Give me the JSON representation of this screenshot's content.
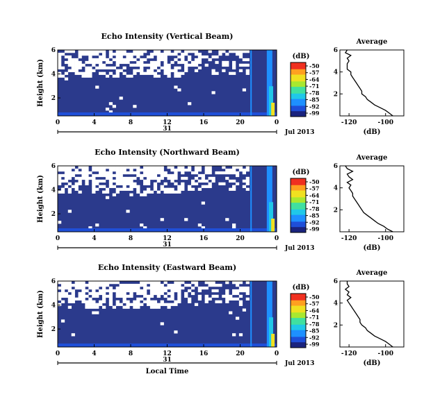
{
  "chart_data": [
    {
      "type": "heatmap",
      "title": "Echo Intensity (Vertical Beam)",
      "ylabel": "Height (km)",
      "xlabel": "",
      "x_ticks": [
        "0",
        "4",
        "8",
        "12",
        "16",
        "20",
        "0"
      ],
      "y_ticks": [
        "6",
        "4",
        "2"
      ],
      "xlim": [
        0,
        24
      ],
      "ylim": [
        0.5,
        6
      ],
      "date_label": "31",
      "month_label": "Jul 2013",
      "colorbar": {
        "label": "(dB)",
        "ticks": [
          "-50",
          "-57",
          "-64",
          "-71",
          "-78",
          "-85",
          "-92",
          "-99"
        ],
        "range": [
          -99,
          -50
        ]
      },
      "profile": {
        "title": "Average",
        "xlabel": "(dB)",
        "x_ticks": [
          "-120",
          "-100"
        ],
        "y_ticks": [
          "6",
          "4",
          "2"
        ],
        "xlim": [
          -125,
          -90
        ],
        "ylim": [
          0,
          6
        ],
        "heights": [
          0,
          0.25,
          0.5,
          0.75,
          1,
          1.25,
          1.5,
          1.75,
          2,
          2.25,
          2.5,
          2.75,
          3,
          3.25,
          3.5,
          3.75,
          4,
          4.25,
          4.5,
          4.75,
          5,
          5.25,
          5.5,
          5.75,
          6
        ],
        "values": [
          -96,
          -98,
          -100,
          -103,
          -106,
          -108,
          -110,
          -111,
          -113,
          -113,
          -114,
          -115,
          -116,
          -117,
          -118,
          -119,
          -119,
          -121,
          -121,
          -121,
          -120,
          -121,
          -119,
          -122,
          -121
        ]
      }
    },
    {
      "type": "heatmap",
      "title": "Echo Intensity (Northward Beam)",
      "ylabel": "Height (km)",
      "xlabel": "",
      "x_ticks": [
        "0",
        "4",
        "8",
        "12",
        "16",
        "20",
        "0"
      ],
      "y_ticks": [
        "6",
        "4",
        "2"
      ],
      "xlim": [
        0,
        24
      ],
      "ylim": [
        0.5,
        6
      ],
      "date_label": "31",
      "month_label": "Jul 2013",
      "colorbar": {
        "label": "(dB)",
        "ticks": [
          "-50",
          "-57",
          "-64",
          "-71",
          "-78",
          "-85",
          "-92",
          "-99"
        ],
        "range": [
          -99,
          -50
        ]
      },
      "profile": {
        "title": "Average",
        "xlabel": "(dB)",
        "x_ticks": [
          "-120",
          "-100"
        ],
        "y_ticks": [
          "6",
          "4",
          "2"
        ],
        "xlim": [
          -125,
          -90
        ],
        "ylim": [
          0,
          6
        ],
        "heights": [
          0,
          0.25,
          0.5,
          0.75,
          1,
          1.25,
          1.5,
          1.75,
          2,
          2.25,
          2.5,
          2.75,
          3,
          3.25,
          3.5,
          3.75,
          4,
          4.25,
          4.5,
          4.75,
          5,
          5.25,
          5.5,
          5.75,
          6
        ],
        "values": [
          -96,
          -99,
          -101,
          -104,
          -106,
          -108,
          -110,
          -112,
          -113,
          -114,
          -115,
          -116,
          -117,
          -118,
          -118,
          -119,
          -120,
          -119,
          -121,
          -118,
          -120,
          -121,
          -118,
          -121,
          -122
        ]
      }
    },
    {
      "type": "heatmap",
      "title": "Echo Intensity (Eastward Beam)",
      "ylabel": "Height (km)",
      "xlabel": "Local Time",
      "x_ticks": [
        "0",
        "4",
        "8",
        "12",
        "16",
        "20",
        "0"
      ],
      "y_ticks": [
        "6",
        "4",
        "2"
      ],
      "xlim": [
        0,
        24
      ],
      "ylim": [
        0.5,
        6
      ],
      "date_label": "31",
      "month_label": "Jul 2013",
      "colorbar": {
        "label": "(dB)",
        "ticks": [
          "-50",
          "-57",
          "-64",
          "-71",
          "-78",
          "-85",
          "-92",
          "-99"
        ],
        "range": [
          -99,
          -50
        ]
      },
      "profile": {
        "title": "Average",
        "xlabel": "(dB)",
        "x_ticks": [
          "-120",
          "-100"
        ],
        "y_ticks": [
          "6",
          "4",
          "2"
        ],
        "xlim": [
          -125,
          -90
        ],
        "ylim": [
          0,
          6
        ],
        "heights": [
          0,
          0.25,
          0.5,
          0.75,
          1,
          1.25,
          1.5,
          1.75,
          2,
          2.25,
          2.5,
          2.75,
          3,
          3.25,
          3.5,
          3.75,
          4,
          4.25,
          4.5,
          4.75,
          5,
          5.25,
          5.5,
          5.75,
          6
        ],
        "values": [
          -96,
          -98,
          -100,
          -103,
          -106,
          -108,
          -110,
          -111,
          -113,
          -114,
          -114,
          -115,
          -116,
          -117,
          -118,
          -119,
          -120,
          -121,
          -119,
          -121,
          -120,
          -122,
          -120,
          -121,
          -121
        ]
      }
    }
  ],
  "colors": {
    "background_echo": "#2b3a8c",
    "no_data": "#ffffff",
    "colormap": [
      "#1a237e",
      "#1f4fd8",
      "#1e90ff",
      "#20c8e8",
      "#40e0a0",
      "#a8e830",
      "#f0e020",
      "#ffa020",
      "#f03020"
    ]
  }
}
